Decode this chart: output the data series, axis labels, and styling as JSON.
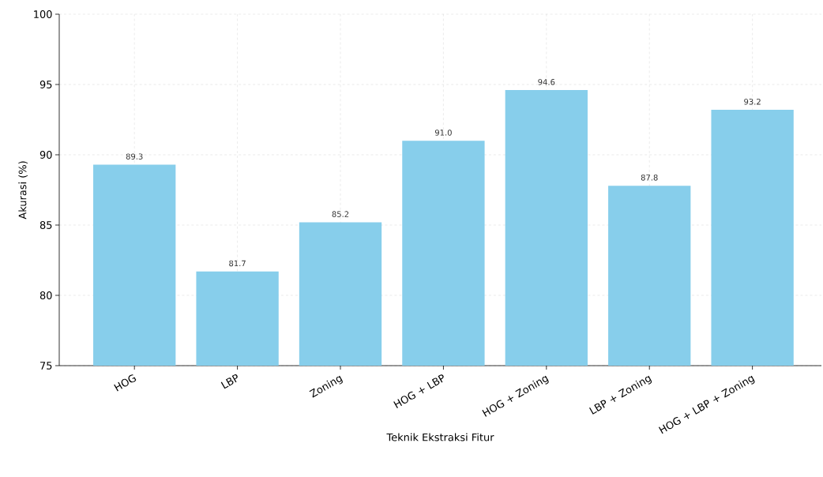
{
  "chart_data": {
    "type": "bar",
    "xlabel": "Teknik Ekstraksi Fitur",
    "ylabel": "Akurasi (%)",
    "categories": [
      "HOG",
      "LBP",
      "Zoning",
      "HOG + LBP",
      "HOG + Zoning",
      "LBP + Zoning",
      "HOG + LBP + Zoning"
    ],
    "values": [
      89.3,
      81.7,
      85.2,
      91.0,
      94.6,
      87.8,
      93.2
    ],
    "value_labels": [
      "89.3",
      "81.7",
      "85.2",
      "91.0",
      "94.6",
      "87.8",
      "93.2"
    ],
    "color": "#87ceeb",
    "ylim": [
      75,
      100
    ],
    "yticks": [
      75,
      80,
      85,
      90,
      95,
      100
    ],
    "grid": true
  }
}
